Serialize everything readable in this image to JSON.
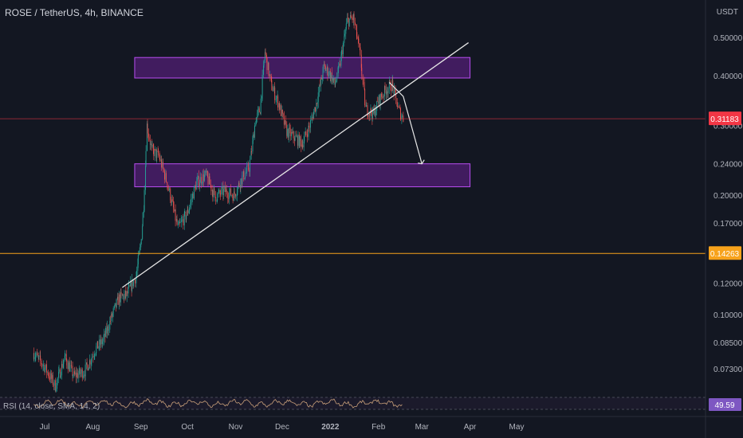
{
  "header": {
    "title": "ROSE / TetherUS, 4h, BINANCE"
  },
  "currency": "USDT",
  "rsi": {
    "label": "RSI (14, close, SMA, 14, 2)",
    "value": "49.59"
  },
  "colors": {
    "background": "#131722",
    "up": "#26a69a",
    "down": "#ef5350",
    "zone_fill": "#4a1d6a",
    "zone_stroke": "#b84df0",
    "trendline": "#e6e6e6",
    "price_line": "#f23645",
    "support_line": "#f7a21b",
    "rsi_line": "#c9a07a",
    "rsi_badge": "#7e57c2"
  },
  "chart_data": {
    "type": "candlestick",
    "y_scale": "log",
    "y_ticks": [
      "0.50000",
      "0.40000",
      "0.30000",
      "0.24000",
      "0.20000",
      "0.17000",
      "0.12000",
      "0.10000",
      "0.08500",
      "0.07300"
    ],
    "y_tick_values": [
      0.5,
      0.4,
      0.3,
      0.24,
      0.2,
      0.17,
      0.12,
      0.1,
      0.085,
      0.073
    ],
    "x_ticks": [
      "Jul",
      "Aug",
      "Sep",
      "Oct",
      "Nov",
      "Dec",
      "2022",
      "Feb",
      "Mar",
      "Apr",
      "May"
    ],
    "x_tick_dates": [
      "2021-07-01",
      "2021-08-01",
      "2021-09-01",
      "2021-10-01",
      "2021-11-01",
      "2021-12-01",
      "2022-01-01",
      "2022-02-01",
      "2022-03-01",
      "2022-04-01",
      "2022-05-01"
    ],
    "price_path": [
      [
        "2021-06-24",
        0.08
      ],
      [
        "2021-07-01",
        0.074
      ],
      [
        "2021-07-08",
        0.066
      ],
      [
        "2021-07-14",
        0.078
      ],
      [
        "2021-07-20",
        0.07
      ],
      [
        "2021-07-27",
        0.072
      ],
      [
        "2021-08-03",
        0.082
      ],
      [
        "2021-08-08",
        0.086
      ],
      [
        "2021-08-13",
        0.098
      ],
      [
        "2021-08-18",
        0.11
      ],
      [
        "2021-08-23",
        0.112
      ],
      [
        "2021-08-29",
        0.125
      ],
      [
        "2021-09-01",
        0.15
      ],
      [
        "2021-09-03",
        0.19
      ],
      [
        "2021-09-05",
        0.3
      ],
      [
        "2021-09-08",
        0.26
      ],
      [
        "2021-09-13",
        0.25
      ],
      [
        "2021-09-18",
        0.215
      ],
      [
        "2021-09-25",
        0.165
      ],
      [
        "2021-10-01",
        0.18
      ],
      [
        "2021-10-07",
        0.215
      ],
      [
        "2021-10-13",
        0.225
      ],
      [
        "2021-10-19",
        0.198
      ],
      [
        "2021-10-25",
        0.205
      ],
      [
        "2021-10-31",
        0.2
      ],
      [
        "2021-11-05",
        0.22
      ],
      [
        "2021-11-10",
        0.235
      ],
      [
        "2021-11-14",
        0.31
      ],
      [
        "2021-11-17",
        0.33
      ],
      [
        "2021-11-20",
        0.46
      ],
      [
        "2021-11-24",
        0.38
      ],
      [
        "2021-11-29",
        0.34
      ],
      [
        "2021-12-04",
        0.29
      ],
      [
        "2021-12-09",
        0.28
      ],
      [
        "2021-12-14",
        0.27
      ],
      [
        "2021-12-19",
        0.3
      ],
      [
        "2021-12-23",
        0.34
      ],
      [
        "2021-12-28",
        0.42
      ],
      [
        "2022-01-01",
        0.405
      ],
      [
        "2022-01-04",
        0.38
      ],
      [
        "2022-01-07",
        0.42
      ],
      [
        "2022-01-12",
        0.55
      ],
      [
        "2022-01-16",
        0.56
      ],
      [
        "2022-01-20",
        0.46
      ],
      [
        "2022-01-24",
        0.33
      ],
      [
        "2022-01-29",
        0.32
      ],
      [
        "2022-02-01",
        0.345
      ],
      [
        "2022-02-06",
        0.37
      ],
      [
        "2022-02-10",
        0.38
      ],
      [
        "2022-02-14",
        0.33
      ],
      [
        "2022-02-17",
        0.312
      ]
    ],
    "zones": [
      {
        "from": "2021-08-28",
        "to": "2022-04-01",
        "top": 0.445,
        "bottom": 0.395
      },
      {
        "from": "2021-08-28",
        "to": "2022-04-01",
        "top": 0.24,
        "bottom": 0.21
      }
    ],
    "trendline": {
      "from": [
        "2021-08-20",
        0.117
      ],
      "to": [
        "2022-03-31",
        0.485
      ]
    },
    "projection": [
      [
        "2022-02-08",
        0.385
      ],
      [
        "2022-02-17",
        0.355
      ],
      [
        "2022-03-01",
        0.24
      ]
    ],
    "price_line": {
      "value": 0.31183,
      "label": "0.31183"
    },
    "support_line": {
      "value": 0.14263,
      "label": "0.14263"
    }
  }
}
